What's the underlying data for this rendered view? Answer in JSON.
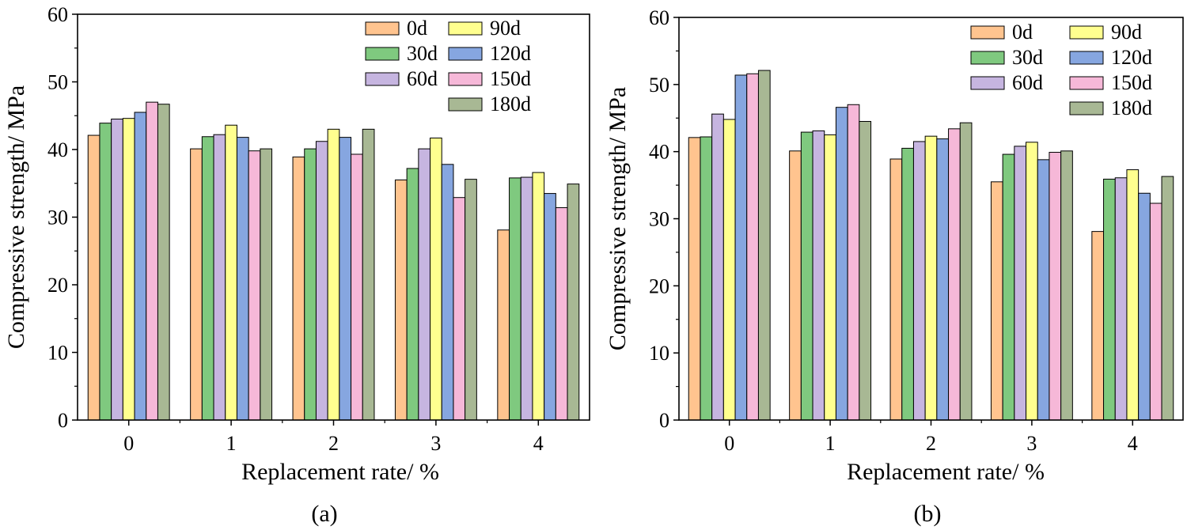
{
  "chart_data": [
    {
      "type": "bar",
      "panel_label": "(a)",
      "xlabel": "Replacement rate/ %",
      "ylabel": "Compressive strength/ MPa",
      "ylim": [
        0,
        60
      ],
      "yticks": [
        "0",
        "10",
        "20",
        "30",
        "40",
        "50",
        "60"
      ],
      "categories": [
        "0",
        "1",
        "2",
        "3",
        "4"
      ],
      "legend_position": "top-right",
      "series": [
        {
          "name": "0d",
          "color": "#FFC48F",
          "values": [
            42.1,
            40.1,
            38.9,
            35.5,
            28.1
          ]
        },
        {
          "name": "30d",
          "color": "#7FC97F",
          "values": [
            43.9,
            41.9,
            40.1,
            37.2,
            35.8
          ]
        },
        {
          "name": "60d",
          "color": "#C6B5E0",
          "values": [
            44.5,
            42.2,
            41.2,
            40.1,
            35.9
          ]
        },
        {
          "name": "90d",
          "color": "#FFFF8F",
          "values": [
            44.6,
            43.6,
            43.0,
            41.7,
            36.6
          ]
        },
        {
          "name": "120d",
          "color": "#86A6E0",
          "values": [
            45.5,
            41.8,
            41.8,
            37.8,
            33.5
          ]
        },
        {
          "name": "150d",
          "color": "#F6B8D8",
          "values": [
            47.0,
            39.8,
            39.3,
            32.9,
            31.4
          ]
        },
        {
          "name": "180d",
          "color": "#A8B894",
          "values": [
            46.7,
            40.1,
            43.0,
            35.6,
            34.9
          ]
        }
      ]
    },
    {
      "type": "bar",
      "panel_label": "(b)",
      "xlabel": "Replacement rate/ %",
      "ylabel": "Compressive strength/ MPa",
      "ylim": [
        0,
        60
      ],
      "yticks": [
        "0",
        "10",
        "20",
        "30",
        "40",
        "50",
        "60"
      ],
      "categories": [
        "0",
        "1",
        "2",
        "3",
        "4"
      ],
      "legend_position": "top-right",
      "series": [
        {
          "name": "0d",
          "color": "#FFC48F",
          "values": [
            42.1,
            40.1,
            38.9,
            35.5,
            28.1
          ]
        },
        {
          "name": "30d",
          "color": "#7FC97F",
          "values": [
            42.2,
            42.9,
            40.5,
            39.6,
            35.9
          ]
        },
        {
          "name": "60d",
          "color": "#C6B5E0",
          "values": [
            45.6,
            43.1,
            41.5,
            40.8,
            36.1
          ]
        },
        {
          "name": "90d",
          "color": "#FFFF8F",
          "values": [
            44.8,
            42.5,
            42.3,
            41.4,
            37.3
          ]
        },
        {
          "name": "120d",
          "color": "#86A6E0",
          "values": [
            51.4,
            46.6,
            41.9,
            38.8,
            33.8
          ]
        },
        {
          "name": "150d",
          "color": "#F6B8D8",
          "values": [
            51.6,
            47.0,
            43.4,
            39.9,
            32.3
          ]
        },
        {
          "name": "180d",
          "color": "#A8B894",
          "values": [
            52.1,
            44.5,
            44.3,
            40.1,
            36.3
          ]
        }
      ]
    }
  ]
}
